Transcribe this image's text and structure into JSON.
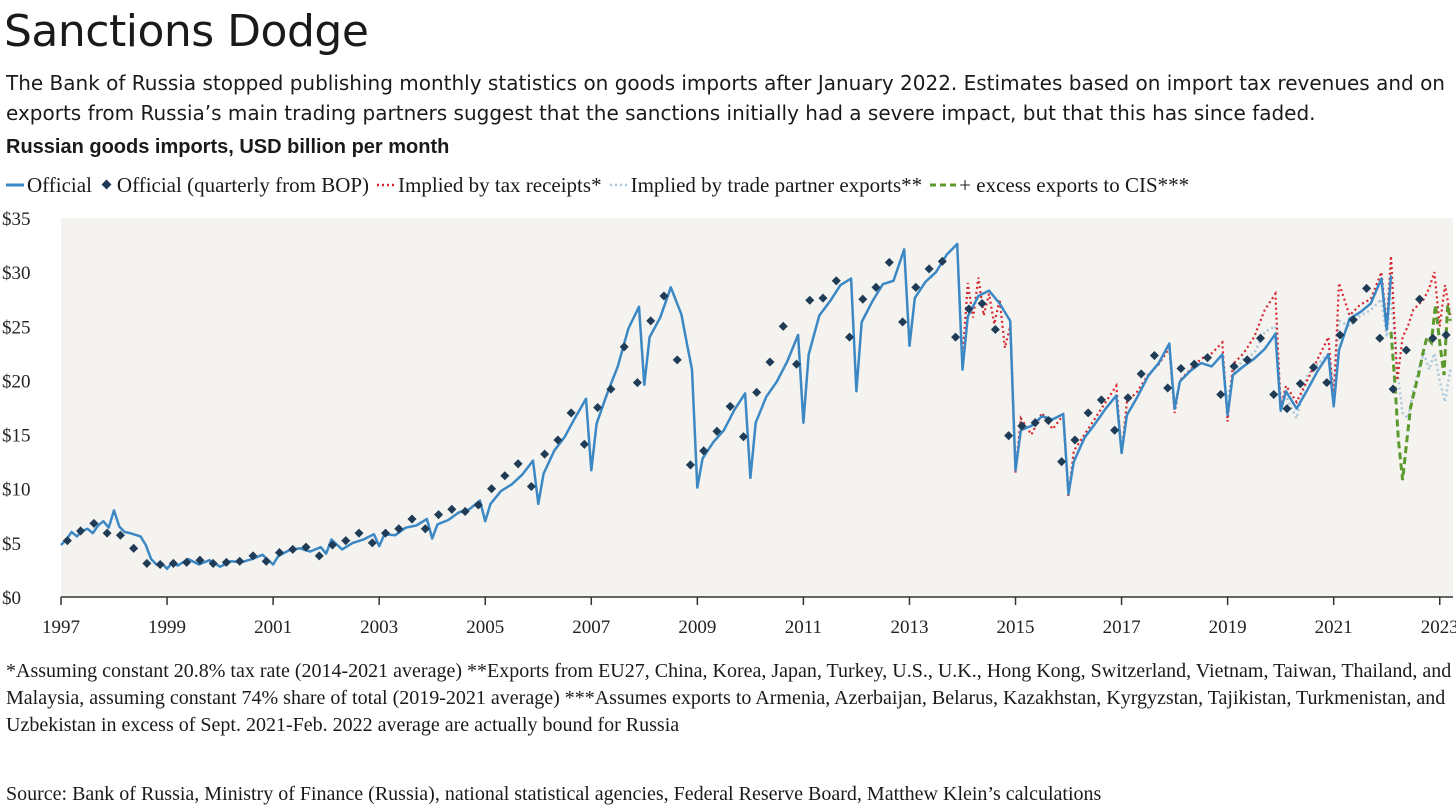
{
  "title": "Sanctions Dodge",
  "subtitle": "The Bank of Russia stopped publishing monthly statistics on goods imports after January 2022. Estimates based on import tax revenues and on exports from Russia’s main trading partners suggest that the sanctions initially had a severe impact, but that this has since faded.",
  "colors": {
    "official": "#3b88c4",
    "bop": "#1f3b55",
    "tax": "#d9232d",
    "partner": "#a9c8dc",
    "cis": "#5c9a2e",
    "plot_bg": "#f4f3ef"
  },
  "chart_data": {
    "type": "line",
    "title": "Russian goods imports, USD billion per month",
    "legend": [
      "Official",
      "Official (quarterly from BOP)",
      "Implied by tax receipts*",
      "Implied by trade partner exports**",
      "+ excess exports to CIS***"
    ],
    "xlim": [
      1997.0,
      2023.25
    ],
    "ylim": [
      0,
      35
    ],
    "x_ticks": [
      1997,
      1999,
      2001,
      2003,
      2005,
      2007,
      2009,
      2011,
      2013,
      2015,
      2017,
      2019,
      2021,
      2023
    ],
    "y_ticks": [
      0,
      5,
      10,
      15,
      20,
      25,
      30,
      35
    ],
    "y_tick_labels": [
      "$0",
      "$5",
      "$10",
      "$15",
      "$20",
      "$25",
      "$30",
      "$35"
    ],
    "series": [
      {
        "name": "Official",
        "x": [
          1997.0,
          1997.1,
          1997.2,
          1997.3,
          1997.4,
          1997.5,
          1997.6,
          1997.7,
          1997.8,
          1997.9,
          1998.0,
          1998.1,
          1998.2,
          1998.3,
          1998.5,
          1998.6,
          1998.7,
          1998.8,
          1998.9,
          1999.0,
          1999.1,
          1999.2,
          1999.4,
          1999.6,
          1999.8,
          2000.0,
          2000.2,
          2000.4,
          2000.6,
          2000.8,
          2001.0,
          2001.1,
          2001.3,
          2001.5,
          2001.7,
          2001.9,
          2002.0,
          2002.1,
          2002.3,
          2002.5,
          2002.7,
          2002.9,
          2003.0,
          2003.1,
          2003.3,
          2003.5,
          2003.7,
          2003.9,
          2004.0,
          2004.1,
          2004.3,
          2004.5,
          2004.7,
          2004.9,
          2005.0,
          2005.1,
          2005.3,
          2005.5,
          2005.7,
          2005.9,
          2006.0,
          2006.1,
          2006.3,
          2006.5,
          2006.7,
          2006.9,
          2007.0,
          2007.1,
          2007.3,
          2007.5,
          2007.7,
          2007.9,
          2008.0,
          2008.1,
          2008.3,
          2008.5,
          2008.7,
          2008.8,
          2008.9,
          2009.0,
          2009.1,
          2009.3,
          2009.5,
          2009.7,
          2009.9,
          2010.0,
          2010.1,
          2010.3,
          2010.5,
          2010.7,
          2010.9,
          2011.0,
          2011.1,
          2011.3,
          2011.5,
          2011.7,
          2011.9,
          2012.0,
          2012.1,
          2012.3,
          2012.5,
          2012.7,
          2012.9,
          2013.0,
          2013.1,
          2013.3,
          2013.5,
          2013.7,
          2013.9,
          2014.0,
          2014.1,
          2014.3,
          2014.5,
          2014.7,
          2014.9,
          2015.0,
          2015.1,
          2015.3,
          2015.5,
          2015.7,
          2015.9,
          2016.0,
          2016.1,
          2016.3,
          2016.5,
          2016.7,
          2016.9,
          2017.0,
          2017.1,
          2017.3,
          2017.5,
          2017.7,
          2017.9,
          2018.0,
          2018.1,
          2018.3,
          2018.5,
          2018.7,
          2018.9,
          2019.0,
          2019.1,
          2019.3,
          2019.5,
          2019.7,
          2019.9,
          2020.0,
          2020.1,
          2020.3,
          2020.5,
          2020.7,
          2020.9,
          2021.0,
          2021.1,
          2021.3,
          2021.5,
          2021.7,
          2021.9,
          2022.0,
          2022.08
        ],
        "values": [
          4.8,
          5.3,
          6.0,
          5.6,
          6.1,
          6.3,
          5.9,
          6.6,
          7.0,
          6.4,
          8.0,
          6.5,
          6.0,
          5.9,
          5.6,
          4.8,
          3.5,
          3.0,
          3.1,
          2.6,
          3.2,
          2.9,
          3.5,
          3.0,
          3.4,
          2.8,
          3.3,
          3.2,
          3.5,
          3.9,
          3.0,
          3.8,
          4.3,
          4.5,
          4.2,
          4.6,
          4.0,
          5.3,
          4.4,
          5.0,
          5.3,
          5.8,
          4.7,
          5.8,
          5.7,
          6.4,
          6.6,
          7.2,
          5.4,
          6.7,
          7.1,
          7.8,
          8.1,
          8.9,
          7.0,
          8.6,
          9.8,
          10.4,
          11.3,
          12.6,
          8.6,
          11.4,
          13.5,
          14.8,
          16.6,
          18.3,
          11.7,
          16.0,
          18.8,
          21.3,
          24.8,
          26.8,
          19.6,
          24.0,
          25.8,
          28.6,
          26.1,
          23.5,
          21.0,
          10.1,
          12.8,
          14.3,
          15.4,
          17.3,
          18.8,
          11.0,
          16.1,
          18.5,
          19.9,
          21.8,
          24.2,
          16.1,
          22.4,
          26.0,
          27.3,
          28.8,
          29.4,
          19.0,
          25.4,
          27.3,
          28.9,
          29.2,
          32.1,
          23.2,
          27.6,
          29.1,
          30.0,
          31.6,
          32.6,
          21.0,
          25.9,
          27.8,
          28.3,
          27.1,
          25.5,
          11.7,
          15.4,
          15.8,
          16.7,
          16.4,
          16.9,
          9.5,
          12.5,
          14.7,
          16.0,
          17.4,
          18.6,
          13.3,
          16.8,
          18.5,
          20.4,
          21.6,
          23.4,
          17.4,
          19.9,
          20.9,
          21.6,
          21.3,
          22.4,
          16.8,
          20.5,
          21.3,
          22.0,
          22.9,
          24.3,
          17.2,
          19.0,
          17.4,
          19.1,
          20.9,
          22.4,
          17.6,
          22.8,
          25.7,
          26.3,
          27.1,
          29.4,
          24.7,
          29.7
        ]
      },
      {
        "name": "Official (quarterly from BOP)",
        "x": [
          1997.12,
          1997.37,
          1997.62,
          1997.87,
          1998.12,
          1998.37,
          1998.62,
          1998.87,
          1999.12,
          1999.37,
          1999.62,
          1999.87,
          2000.12,
          2000.37,
          2000.62,
          2000.87,
          2001.12,
          2001.37,
          2001.62,
          2001.87,
          2002.12,
          2002.37,
          2002.62,
          2002.87,
          2003.12,
          2003.37,
          2003.62,
          2003.87,
          2004.12,
          2004.37,
          2004.62,
          2004.87,
          2005.12,
          2005.37,
          2005.62,
          2005.87,
          2006.12,
          2006.37,
          2006.62,
          2006.87,
          2007.12,
          2007.37,
          2007.62,
          2007.87,
          2008.12,
          2008.37,
          2008.62,
          2008.87,
          2009.12,
          2009.37,
          2009.62,
          2009.87,
          2010.12,
          2010.37,
          2010.62,
          2010.87,
          2011.12,
          2011.37,
          2011.62,
          2011.87,
          2012.12,
          2012.37,
          2012.62,
          2012.87,
          2013.12,
          2013.37,
          2013.62,
          2013.87,
          2014.12,
          2014.37,
          2014.62,
          2014.87,
          2015.12,
          2015.37,
          2015.62,
          2015.87,
          2016.12,
          2016.37,
          2016.62,
          2016.87,
          2017.12,
          2017.37,
          2017.62,
          2017.87,
          2018.12,
          2018.37,
          2018.62,
          2018.87,
          2019.12,
          2019.37,
          2019.62,
          2019.87,
          2020.12,
          2020.37,
          2020.62,
          2020.87,
          2021.12,
          2021.37,
          2021.62,
          2021.87,
          2022.12,
          2022.37,
          2022.62,
          2022.87,
          2023.12
        ],
        "values": [
          5.2,
          6.1,
          6.8,
          5.9,
          5.7,
          4.5,
          3.1,
          3.0,
          3.1,
          3.2,
          3.4,
          3.1,
          3.2,
          3.3,
          3.8,
          3.3,
          4.1,
          4.4,
          4.6,
          3.8,
          4.8,
          5.2,
          5.9,
          5.0,
          5.9,
          6.3,
          7.2,
          6.3,
          7.6,
          8.1,
          7.9,
          8.5,
          10.0,
          11.2,
          12.3,
          10.2,
          13.2,
          14.5,
          17.0,
          14.1,
          17.5,
          19.2,
          23.1,
          19.8,
          25.5,
          27.8,
          21.9,
          12.2,
          13.5,
          15.3,
          17.6,
          14.8,
          18.9,
          21.7,
          25.0,
          21.5,
          27.4,
          27.6,
          29.2,
          24.0,
          27.5,
          28.6,
          30.9,
          25.4,
          28.6,
          30.3,
          31.0,
          24.0,
          26.6,
          27.1,
          24.7,
          14.9,
          15.8,
          16.1,
          16.3,
          12.5,
          14.5,
          17.0,
          18.2,
          15.4,
          18.4,
          20.6,
          22.3,
          19.3,
          21.1,
          21.5,
          22.1,
          18.7,
          21.3,
          21.9,
          23.9,
          18.7,
          17.4,
          19.7,
          21.2,
          19.8,
          24.2,
          25.6,
          28.5,
          23.9,
          19.2,
          22.8,
          27.5,
          23.9,
          24.2
        ]
      },
      {
        "name": "Implied by tax receipts*",
        "x": [
          2014.0,
          2014.1,
          2014.2,
          2014.3,
          2014.4,
          2014.5,
          2014.6,
          2014.7,
          2014.8,
          2014.9,
          2015.0,
          2015.1,
          2015.3,
          2015.5,
          2015.7,
          2015.9,
          2016.0,
          2016.1,
          2016.3,
          2016.5,
          2016.7,
          2016.9,
          2017.0,
          2017.1,
          2017.3,
          2017.5,
          2017.7,
          2017.9,
          2018.0,
          2018.1,
          2018.3,
          2018.5,
          2018.7,
          2018.9,
          2019.0,
          2019.1,
          2019.3,
          2019.5,
          2019.7,
          2019.9,
          2020.0,
          2020.1,
          2020.3,
          2020.5,
          2020.7,
          2020.9,
          2021.0,
          2021.1,
          2021.3,
          2021.5,
          2021.7,
          2021.9,
          2022.0,
          2022.08,
          2022.2,
          2022.3,
          2022.4,
          2022.5,
          2022.6,
          2022.7,
          2022.8,
          2022.9,
          2023.0,
          2023.1,
          2023.2
        ],
        "values": [
          22.0,
          29.0,
          25.8,
          29.5,
          26.0,
          28.0,
          25.2,
          27.5,
          23.0,
          25.0,
          11.5,
          16.5,
          15.0,
          17.0,
          15.5,
          16.8,
          9.3,
          13.5,
          15.0,
          16.5,
          18.0,
          19.5,
          13.2,
          18.0,
          19.0,
          20.5,
          21.5,
          23.0,
          17.0,
          20.0,
          21.0,
          22.0,
          22.5,
          23.5,
          16.2,
          21.5,
          22.5,
          24.0,
          26.5,
          28.0,
          17.5,
          19.5,
          18.0,
          20.0,
          22.0,
          24.0,
          18.0,
          29.0,
          26.0,
          27.0,
          27.5,
          30.0,
          25.0,
          31.5,
          20.0,
          24.0,
          25.0,
          26.5,
          27.0,
          27.5,
          28.5,
          30.0,
          25.0,
          28.8,
          26.0
        ]
      },
      {
        "name": "Implied by trade partner exports**",
        "x": [
          2019.0,
          2019.1,
          2019.3,
          2019.5,
          2019.7,
          2019.9,
          2020.0,
          2020.1,
          2020.3,
          2020.5,
          2020.7,
          2020.9,
          2021.0,
          2021.1,
          2021.3,
          2021.5,
          2021.7,
          2021.9,
          2022.0,
          2022.08,
          2022.2,
          2022.3,
          2022.4,
          2022.5,
          2022.6,
          2022.7,
          2022.8,
          2022.9,
          2023.0,
          2023.1,
          2023.2
        ],
        "values": [
          18.5,
          20.5,
          22.0,
          22.5,
          24.5,
          25.0,
          18.0,
          18.5,
          16.5,
          20.5,
          21.5,
          22.5,
          19.5,
          25.5,
          25.0,
          26.0,
          26.5,
          27.5,
          24.0,
          28.0,
          21.0,
          17.0,
          16.5,
          19.0,
          21.0,
          22.5,
          21.0,
          22.5,
          20.0,
          18.0,
          21.0
        ]
      },
      {
        "name": "+ excess exports to CIS***",
        "x": [
          2022.08,
          2022.15,
          2022.22,
          2022.3,
          2022.37,
          2022.45,
          2022.52,
          2022.6,
          2022.68,
          2022.76,
          2022.84,
          2022.92,
          2023.0,
          2023.08,
          2023.15,
          2023.2
        ],
        "values": [
          24.5,
          20.0,
          14.5,
          10.8,
          14.0,
          17.5,
          19.0,
          20.5,
          22.5,
          24.0,
          23.5,
          27.0,
          23.5,
          20.5,
          27.0,
          25.5
        ]
      }
    ]
  },
  "footnote": "*Assuming constant 20.8% tax rate (2014-2021 average) **Exports from EU27, China, Korea, Japan, Turkey, U.S., U.K., Hong Kong, Switzerland, Vietnam, Taiwan, Thailand, and Malaysia, assuming constant 74% share of total (2019-2021 average)  ***Assumes exports to Armenia, Azerbaijan, Belarus, Kazakhstan, Kyrgyzstan, Tajikistan, Turkmenistan, and Uzbekistan in excess of Sept. 2021-Feb. 2022 average are actually bound for Russia",
  "source": "Source: Bank of Russia, Ministry of Finance (Russia), national statistical agencies, Federal Reserve Board, Matthew Klein’s calculations"
}
